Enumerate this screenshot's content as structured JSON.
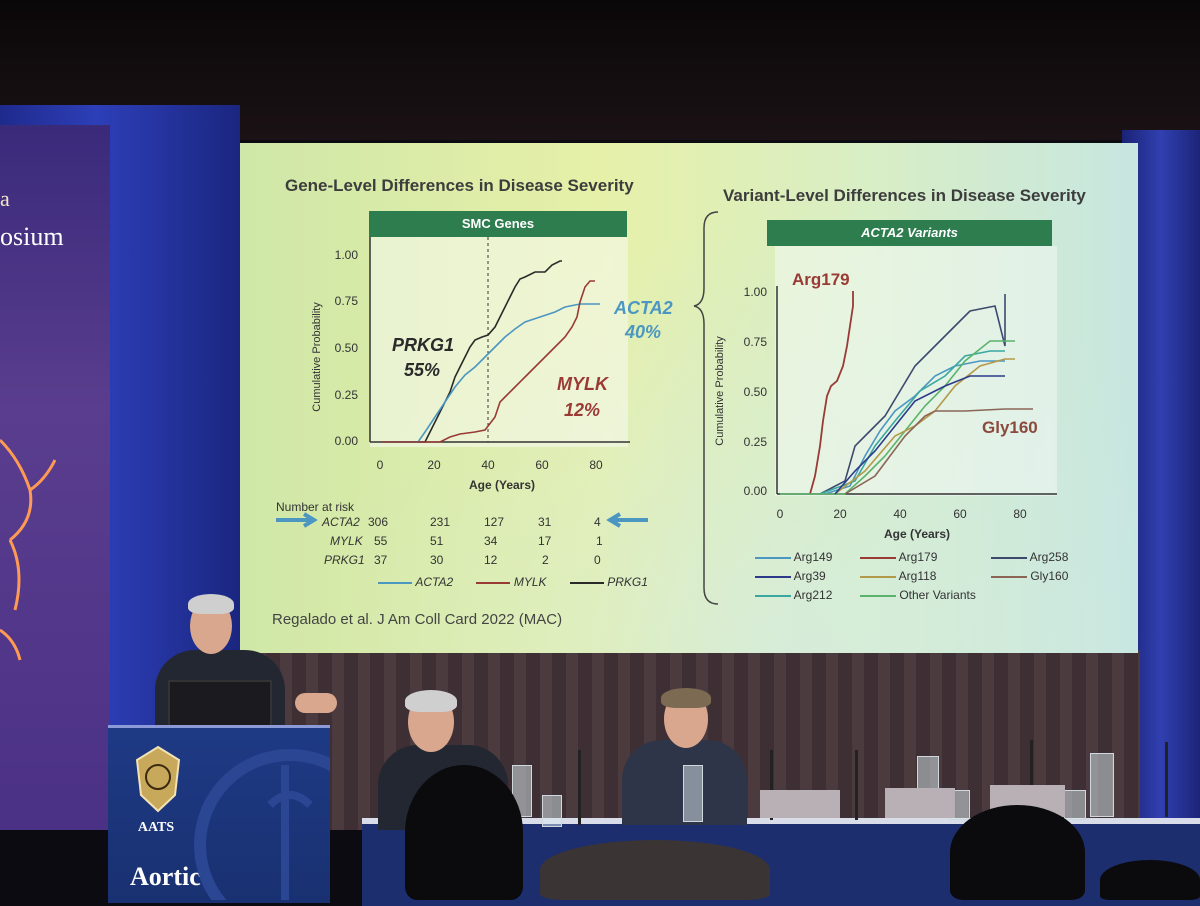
{
  "banner": {
    "text": "osium",
    "letter": "a"
  },
  "slide": {
    "left_heading": "Gene-Level Differences in Disease Severity",
    "right_heading": "Variant-Level Differences in Disease Severity",
    "left_bar": "SMC Genes",
    "right_bar": "ACTA2 Variants",
    "citation": "Regalado et al. J Am Coll Card 2022 (MAC)",
    "left_yticks": [
      "1.00",
      "0.75",
      "0.50",
      "0.25",
      "0.00"
    ],
    "left_xticks": [
      "0",
      "20",
      "40",
      "60",
      "80"
    ],
    "left_ylabel": "Cumulative Probability",
    "left_xlabel": "Age (Years)",
    "right_yticks": [
      "1.00",
      "0.75",
      "0.50",
      "0.25",
      "0.00"
    ],
    "right_xticks": [
      "0",
      "20",
      "40",
      "60",
      "80"
    ],
    "right_ylabel": "Cumulative Probability",
    "right_xlabel": "Age (Years)",
    "annot_prkg1": "PRKG1",
    "annot_prkg1_pct": "55%",
    "annot_acta2": "ACTA2",
    "annot_acta2_pct": "40%",
    "annot_mylk": "MYLK",
    "annot_mylk_pct": "12%",
    "annot_arg179": "Arg179",
    "annot_gly160": "Gly160",
    "risk_title": "Number at risk",
    "risk_rows": [
      {
        "label": "ACTA2",
        "values": [
          "306",
          "231",
          "127",
          "31",
          "4"
        ]
      },
      {
        "label": "MYLK",
        "values": [
          "55",
          "51",
          "34",
          "17",
          "1"
        ]
      },
      {
        "label": "PRKG1",
        "values": [
          "37",
          "30",
          "12",
          "2",
          "0"
        ]
      }
    ],
    "left_legend": [
      "ACTA2",
      "MYLK",
      "PRKG1"
    ],
    "right_legend": [
      "Arg149",
      "Arg179",
      "Arg258",
      "Arg39",
      "Arg118",
      "Gly160",
      "Arg212",
      "Other Variants"
    ]
  },
  "podium": {
    "aats": "AATS",
    "aortic": "Aortic"
  },
  "colors": {
    "acta2": "#4b97c2",
    "mylk": "#9a3a35",
    "prkg1": "#2a2a2a",
    "green_bar": "#2e7d4f"
  }
}
